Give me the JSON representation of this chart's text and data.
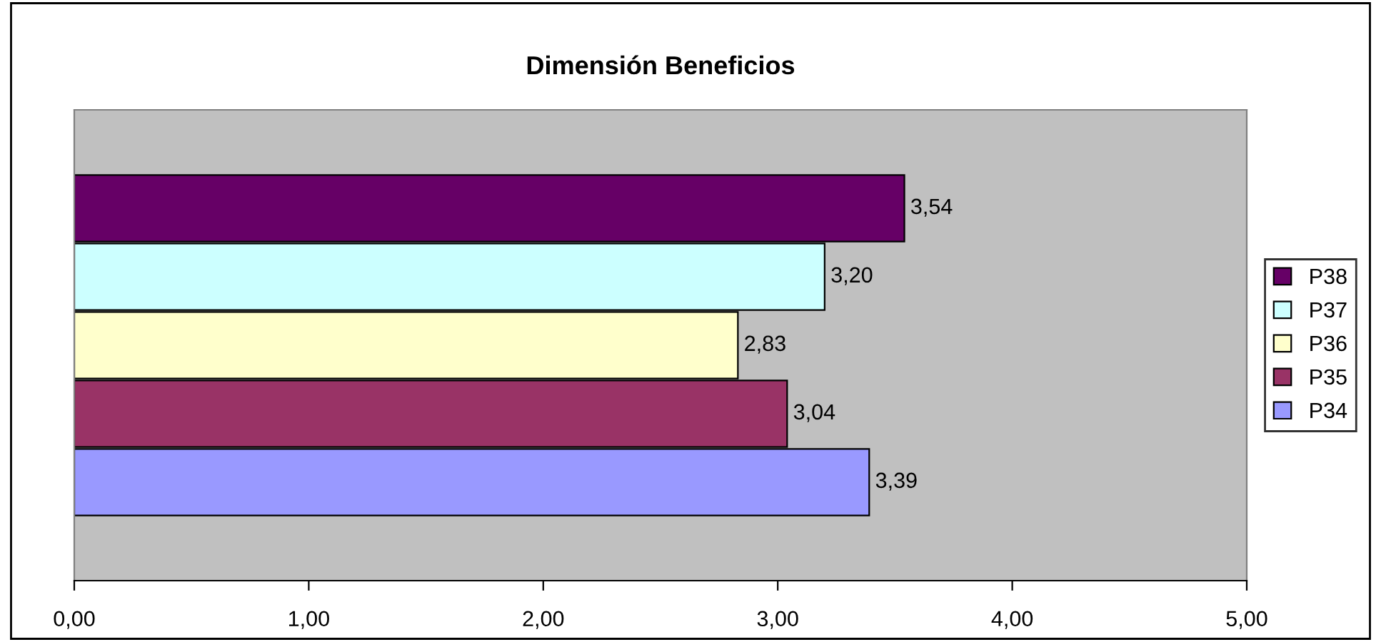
{
  "chart_data": {
    "type": "bar",
    "orientation": "horizontal",
    "title": "Dimensión Beneficios",
    "categories": [
      null
    ],
    "series": [
      {
        "name": "P38",
        "color": "#660066",
        "values": [
          3.54
        ],
        "value_labels": [
          "3,54"
        ]
      },
      {
        "name": "P37",
        "color": "#ccffff",
        "values": [
          3.2
        ],
        "value_labels": [
          "3,20"
        ]
      },
      {
        "name": "P36",
        "color": "#ffffcc",
        "values": [
          2.83
        ],
        "value_labels": [
          "2,83"
        ]
      },
      {
        "name": "P35",
        "color": "#993366",
        "values": [
          3.04
        ],
        "value_labels": [
          "3,04"
        ]
      },
      {
        "name": "P34",
        "color": "#9999ff",
        "values": [
          3.39
        ],
        "value_labels": [
          "3,39"
        ]
      }
    ],
    "xlim": [
      0,
      5
    ],
    "xticks": [
      {
        "value": 0,
        "label": "0,00"
      },
      {
        "value": 1,
        "label": "1,00"
      },
      {
        "value": 2,
        "label": "2,00"
      },
      {
        "value": 3,
        "label": "3,00"
      },
      {
        "value": 4,
        "label": "4,00"
      },
      {
        "value": 5,
        "label": "5,00"
      }
    ],
    "grid": false,
    "legend": "right"
  }
}
